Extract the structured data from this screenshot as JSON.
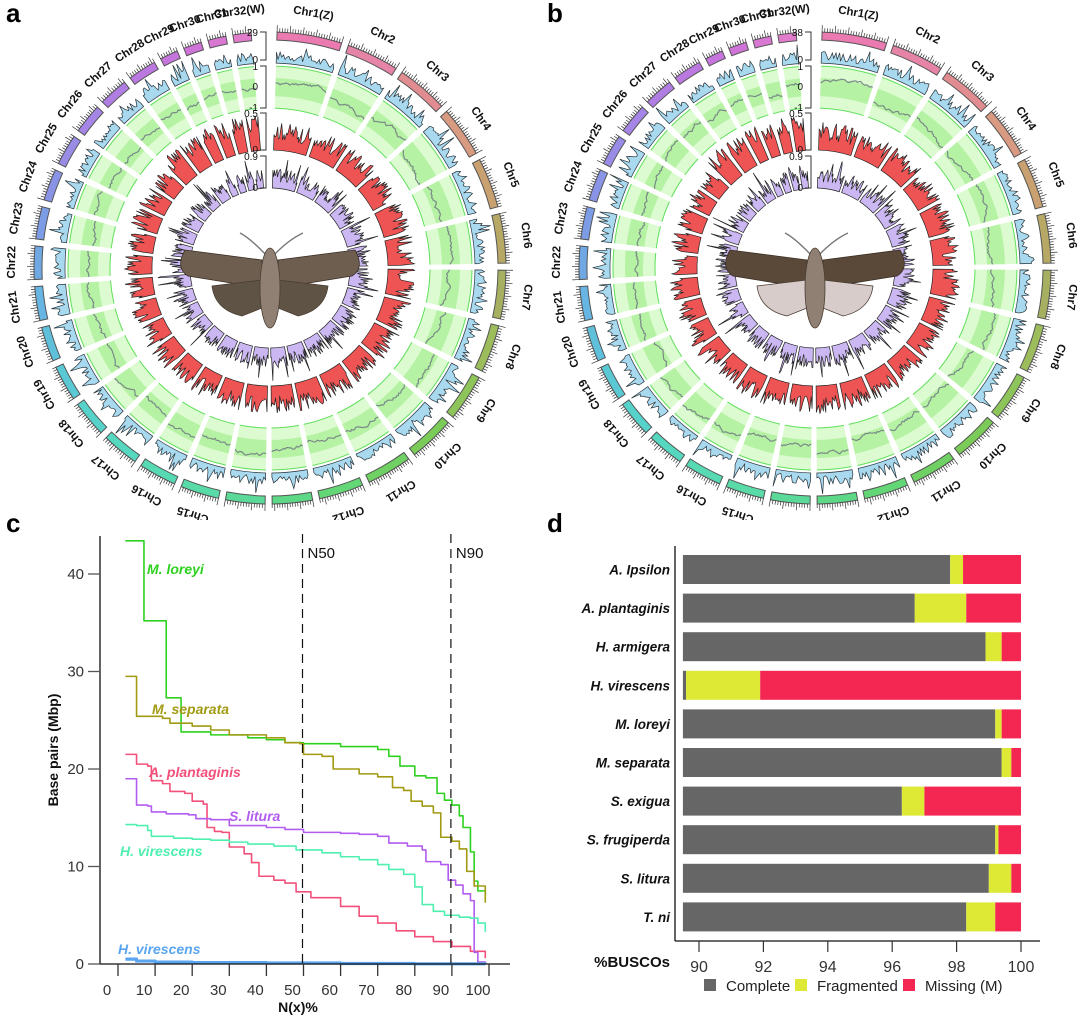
{
  "panels": {
    "a": {
      "letter": "a"
    },
    "b": {
      "letter": "b"
    },
    "c": {
      "letter": "c"
    },
    "d": {
      "letter": "d"
    }
  },
  "circos": [
    {
      "id": "a",
      "chromosomes": [
        "Chr1(Z)",
        "Chr2",
        "Chr3",
        "Chr4",
        "Chr5",
        "Chr6",
        "Chr7",
        "Chr8",
        "Chr9",
        "Chr10",
        "Chr11",
        "Chr12",
        "Chr13",
        "Chr14",
        "Chr15",
        "Chr16",
        "Chr17",
        "Chr18",
        "Chr19",
        "Chr20",
        "Chr21",
        "Chr22",
        "Chr23",
        "Chr24",
        "Chr25",
        "Chr26",
        "Chr27",
        "Chr28",
        "Chr29",
        "Chr30",
        "Chr31",
        "Chr32(W)"
      ],
      "track_scales": {
        "gene_density": {
          "max": "29",
          "min": "0"
        },
        "gc_skew": {
          "max": "1",
          "mid": "0",
          "min": "-1"
        },
        "repeat": {
          "max": "0.5",
          "min": "0"
        },
        "gc_content": {
          "max": "0.9",
          "min": "0"
        }
      },
      "specimen": "moth-image-a"
    },
    {
      "id": "b",
      "chromosomes": [
        "Chr1(Z)",
        "Chr2",
        "Chr3",
        "Chr4",
        "Chr5",
        "Chr6",
        "Chr7",
        "Chr8",
        "Chr9",
        "Chr10",
        "Chr11",
        "Chr12",
        "Chr13",
        "Chr14",
        "Chr15",
        "Chr16",
        "Chr17",
        "Chr18",
        "Chr19",
        "Chr20",
        "Chr21",
        "Chr22",
        "Chr23",
        "Chr24",
        "Chr25",
        "Chr26",
        "Chr27",
        "Chr28",
        "Chr29",
        "Chr30",
        "Chr31",
        "Chr32(W)"
      ],
      "track_scales": {
        "gene_density": {
          "max": "38",
          "min": "0"
        },
        "gc_skew": {
          "max": "1",
          "mid": "0",
          "min": "-1"
        },
        "repeat": {
          "max": "0.5",
          "min": "0"
        },
        "gc_content": {
          "max": "0.9",
          "min": "0"
        }
      },
      "specimen": "moth-image-b"
    }
  ],
  "colors": {
    "complete": "#666666",
    "fragmented": "#dde935",
    "missing": "#f32752",
    "m_loreyi": "#2ed11f",
    "m_separata": "#a19a12",
    "a_plantaginis": "#f2507a",
    "s_litura": "#b35cf0",
    "h_virescens_1": "#4fefb0",
    "h_virescens_2": "#5aa5f0"
  },
  "chart_data": [
    {
      "type": "line",
      "panel": "c",
      "title": "",
      "xlabel": "N(x)%",
      "ylabel": "Base pairs (Mbp)",
      "xlim": [
        -3,
        103
      ],
      "ylim": [
        0,
        44
      ],
      "xticks": [
        0,
        10,
        20,
        30,
        40,
        50,
        60,
        70,
        80,
        90,
        100
      ],
      "yticks": [
        0,
        10,
        20,
        30,
        40
      ],
      "grid": false,
      "annotations": [
        {
          "label": "N50",
          "x": 50
        },
        {
          "label": "N90",
          "x": 90
        }
      ],
      "series": [
        {
          "name": "M. loreyi",
          "color_key": "m_loreyi",
          "points": [
            [
              2,
              43.4
            ],
            [
              6,
              43.4
            ],
            [
              7,
              35.2
            ],
            [
              12,
              35.2
            ],
            [
              13,
              27.3
            ],
            [
              16,
              27.3
            ],
            [
              17,
              23.8
            ],
            [
              25,
              23.5
            ],
            [
              35,
              23.2
            ],
            [
              40,
              23.0
            ],
            [
              45,
              22.7
            ],
            [
              50,
              22.6
            ],
            [
              60,
              22.3
            ],
            [
              70,
              22.0
            ],
            [
              73,
              21.3
            ],
            [
              76,
              20.3
            ],
            [
              80,
              19.3
            ],
            [
              83,
              19.1
            ],
            [
              86,
              17.5
            ],
            [
              88,
              16.8
            ],
            [
              90,
              16.3
            ],
            [
              92,
              15.2
            ],
            [
              93,
              14.0
            ],
            [
              95,
              11.5
            ],
            [
              96,
              8.5
            ],
            [
              97,
              7.5
            ],
            [
              99,
              7.0
            ]
          ]
        },
        {
          "name": "M. separata",
          "color_key": "m_separata",
          "points": [
            [
              2,
              29.5
            ],
            [
              4,
              29.5
            ],
            [
              5,
              25.4
            ],
            [
              12,
              25.2
            ],
            [
              14,
              24.7
            ],
            [
              20,
              24.4
            ],
            [
              25,
              24.0
            ],
            [
              30,
              23.5
            ],
            [
              40,
              23.2
            ],
            [
              45,
              22.7
            ],
            [
              49,
              22.6
            ],
            [
              50,
              21.5
            ],
            [
              55,
              21.3
            ],
            [
              58,
              20.0
            ],
            [
              65,
              19.5
            ],
            [
              70,
              19.2
            ],
            [
              74,
              18.1
            ],
            [
              77,
              17.8
            ],
            [
              79,
              16.7
            ],
            [
              82,
              16.2
            ],
            [
              85,
              15.5
            ],
            [
              87,
              13.0
            ],
            [
              90,
              12.6
            ],
            [
              92,
              11.8
            ],
            [
              94,
              9.5
            ],
            [
              96,
              8.0
            ],
            [
              99,
              6.3
            ]
          ]
        },
        {
          "name": "A. plantaginis",
          "color_key": "a_plantaginis",
          "points": [
            [
              2,
              21.5
            ],
            [
              4,
              21.5
            ],
            [
              5,
              20.5
            ],
            [
              8,
              20.3
            ],
            [
              9,
              18.8
            ],
            [
              12,
              18.5
            ],
            [
              14,
              17.7
            ],
            [
              18,
              17.5
            ],
            [
              20,
              16.7
            ],
            [
              23,
              16.4
            ],
            [
              24,
              14.0
            ],
            [
              26,
              13.6
            ],
            [
              28,
              13.5
            ],
            [
              30,
              12.0
            ],
            [
              34,
              11.3
            ],
            [
              36,
              10.4
            ],
            [
              38,
              9.0
            ],
            [
              42,
              8.6
            ],
            [
              45,
              8.3
            ],
            [
              48,
              7.4
            ],
            [
              52,
              6.8
            ],
            [
              60,
              5.9
            ],
            [
              65,
              4.9
            ],
            [
              70,
              4.2
            ],
            [
              75,
              3.4
            ],
            [
              80,
              2.8
            ],
            [
              85,
              2.3
            ],
            [
              90,
              1.8
            ],
            [
              95,
              1.3
            ],
            [
              99,
              0.6
            ]
          ]
        },
        {
          "name": "S. litura",
          "color_key": "s_litura",
          "points": [
            [
              2,
              19.0
            ],
            [
              4,
              19.0
            ],
            [
              5,
              16.3
            ],
            [
              8,
              16.2
            ],
            [
              9,
              15.6
            ],
            [
              13,
              15.4
            ],
            [
              19,
              15.3
            ],
            [
              21,
              14.9
            ],
            [
              25,
              14.8
            ],
            [
              30,
              14.2
            ],
            [
              40,
              14.0
            ],
            [
              45,
              13.8
            ],
            [
              50,
              13.5
            ],
            [
              60,
              13.4
            ],
            [
              65,
              13.3
            ],
            [
              70,
              13.1
            ],
            [
              73,
              12.4
            ],
            [
              78,
              12.1
            ],
            [
              82,
              11.7
            ],
            [
              83,
              10.5
            ],
            [
              87,
              10.2
            ],
            [
              89,
              8.6
            ],
            [
              91,
              8.1
            ],
            [
              93,
              7.2
            ],
            [
              95,
              6.5
            ],
            [
              96,
              1.2
            ],
            [
              97,
              0.2
            ],
            [
              99,
              0.1
            ]
          ]
        },
        {
          "name": "H. virescens",
          "color_key": "h_virescens_1",
          "points": [
            [
              2,
              14.3
            ],
            [
              5,
              14.2
            ],
            [
              8,
              13.7
            ],
            [
              9,
              13.1
            ],
            [
              15,
              12.9
            ],
            [
              20,
              12.8
            ],
            [
              25,
              12.7
            ],
            [
              30,
              12.5
            ],
            [
              35,
              12.3
            ],
            [
              42,
              12.1
            ],
            [
              48,
              11.7
            ],
            [
              55,
              11.4
            ],
            [
              60,
              11.0
            ],
            [
              65,
              10.7
            ],
            [
              70,
              10.2
            ],
            [
              73,
              9.7
            ],
            [
              77,
              9.2
            ],
            [
              80,
              7.9
            ],
            [
              82,
              6.1
            ],
            [
              85,
              5.4
            ],
            [
              88,
              5.0
            ],
            [
              92,
              4.8
            ],
            [
              95,
              4.7
            ],
            [
              97,
              4.2
            ],
            [
              99,
              3.3
            ]
          ]
        },
        {
          "name": "H. virescens",
          "color_key": "h_virescens_2",
          "points": [
            [
              2,
              0.5
            ],
            [
              5,
              0.3
            ],
            [
              10,
              0.2
            ],
            [
              20,
              0.15
            ],
            [
              40,
              0.1
            ],
            [
              60,
              0.05
            ],
            [
              80,
              0.02
            ],
            [
              99,
              0.0
            ]
          ]
        }
      ]
    },
    {
      "type": "bar",
      "orientation": "horizontal",
      "stacked": true,
      "panel": "d",
      "title": "",
      "xlabel": "%BUSCOs",
      "ylabel": "",
      "xlim": [
        89.5,
        100
      ],
      "xticks": [
        90,
        92,
        94,
        96,
        98,
        100
      ],
      "grid": false,
      "legend": {
        "position": "bottom",
        "entries": [
          "Complete",
          "Fragmented",
          "Missing (M)"
        ]
      },
      "categories": [
        "A. Ipsilon",
        "A. plantaginis",
        "H. armigera",
        "H. virescens",
        "M. loreyi",
        "M. separata",
        "S. exigua",
        "S. frugiperda",
        "S. litura",
        "T. ni"
      ],
      "series": [
        {
          "name": "Complete",
          "color_key": "complete",
          "cumulative_end": [
            97.8,
            96.7,
            98.9,
            89.6,
            99.2,
            99.4,
            96.3,
            99.2,
            99.0,
            98.3
          ]
        },
        {
          "name": "Fragmented",
          "color_key": "fragmented",
          "cumulative_end": [
            98.2,
            98.3,
            99.4,
            91.9,
            99.4,
            99.7,
            97.0,
            99.3,
            99.7,
            99.2
          ]
        },
        {
          "name": "Missing (M)",
          "color_key": "missing",
          "cumulative_end": [
            100,
            100,
            100,
            100,
            100,
            100,
            100,
            100,
            100,
            100
          ]
        }
      ]
    }
  ]
}
